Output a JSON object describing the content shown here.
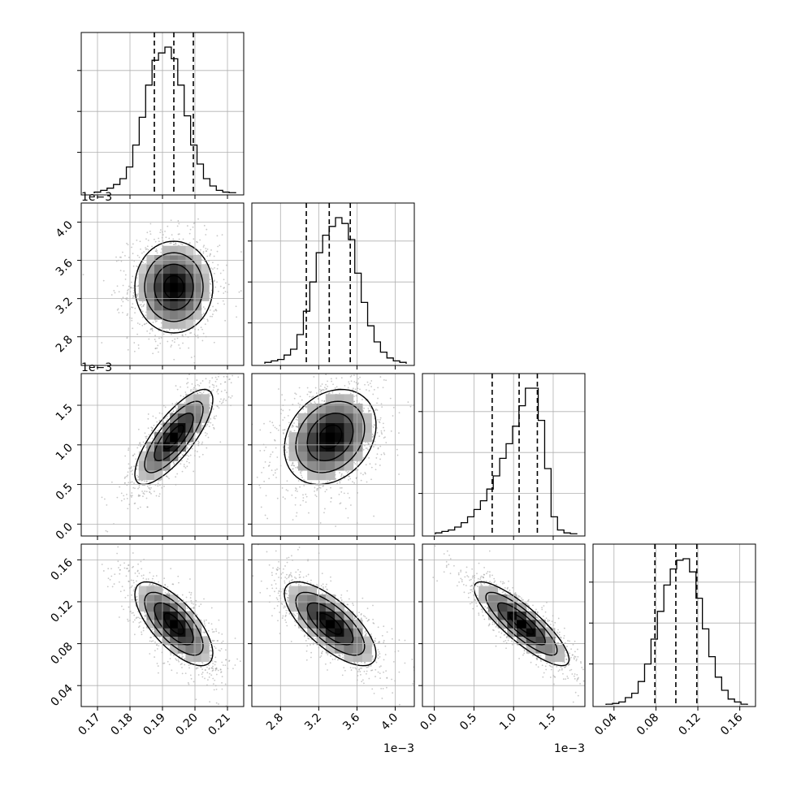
{
  "chart_data": {
    "type": "corner",
    "grid": true,
    "params": [
      {
        "range": [
          0.165,
          0.215
        ],
        "ticks": [
          0.17,
          0.18,
          0.19,
          0.2,
          0.21
        ],
        "tick_labels": [
          "0.17",
          "0.18",
          "0.19",
          "0.20",
          "0.21"
        ],
        "offset_label": "",
        "center": 0.1935,
        "sigma": 0.006,
        "quantiles": [
          0.1875,
          0.1935,
          0.1995
        ],
        "hist": [
          0.008,
          0.02,
          0.035,
          0.06,
          0.1,
          0.18,
          0.33,
          0.52,
          0.74,
          0.91,
          0.96,
          1.0,
          0.92,
          0.74,
          0.53,
          0.33,
          0.2,
          0.1,
          0.05,
          0.02,
          0.008,
          0.004
        ]
      },
      {
        "range": [
          2.5,
          4.2
        ],
        "ticks": [
          2.8,
          3.2,
          3.6,
          4.0
        ],
        "tick_labels": [
          "2.8",
          "3.2",
          "3.6",
          "4.0"
        ],
        "offset_label": "1e−3",
        "center": 3.32,
        "sigma": 0.24,
        "quantiles": [
          3.07,
          3.31,
          3.53
        ],
        "hist": [
          0.01,
          0.02,
          0.03,
          0.06,
          0.1,
          0.2,
          0.36,
          0.56,
          0.76,
          0.88,
          0.94,
          1.0,
          0.96,
          0.85,
          0.62,
          0.42,
          0.26,
          0.15,
          0.08,
          0.04,
          0.02,
          0.01
        ]
      },
      {
        "range": [
          -0.15,
          1.9
        ],
        "ticks": [
          0.0,
          0.5,
          1.0,
          1.5
        ],
        "tick_labels": [
          "0.0",
          "0.5",
          "1.0",
          "1.5"
        ],
        "offset_label": "1e−3",
        "center": 1.1,
        "sigma": 0.3,
        "quantiles": [
          0.73,
          1.07,
          1.3
        ],
        "hist": [
          0.01,
          0.02,
          0.03,
          0.05,
          0.08,
          0.12,
          0.17,
          0.23,
          0.31,
          0.4,
          0.52,
          0.62,
          0.74,
          0.88,
          1.0,
          1.0,
          0.78,
          0.45,
          0.12,
          0.03,
          0.01,
          0.004
        ]
      },
      {
        "range": [
          0.02,
          0.175
        ],
        "ticks": [
          0.04,
          0.08,
          0.12,
          0.16
        ],
        "tick_labels": [
          "0.04",
          "0.08",
          "0.12",
          "0.16"
        ],
        "offset_label": "",
        "center": 0.099,
        "sigma": 0.02,
        "quantiles": [
          0.079,
          0.099,
          0.119
        ],
        "hist": [
          0.005,
          0.01,
          0.02,
          0.05,
          0.08,
          0.16,
          0.28,
          0.45,
          0.64,
          0.82,
          0.93,
          0.99,
          1.0,
          0.91,
          0.73,
          0.52,
          0.33,
          0.19,
          0.1,
          0.04,
          0.02,
          0.005
        ]
      }
    ],
    "pairs": [
      {
        "x": 0,
        "y": 1,
        "rho": 0.0
      },
      {
        "x": 0,
        "y": 2,
        "rho": 0.78
      },
      {
        "x": 1,
        "y": 2,
        "rho": 0.25
      },
      {
        "x": 0,
        "y": 3,
        "rho": -0.7
      },
      {
        "x": 1,
        "y": 3,
        "rho": -0.72
      },
      {
        "x": 2,
        "y": 3,
        "rho": -0.85
      }
    ],
    "contour_levels_sigma": [
      0.5,
      1.0,
      1.5,
      2.0
    ]
  }
}
